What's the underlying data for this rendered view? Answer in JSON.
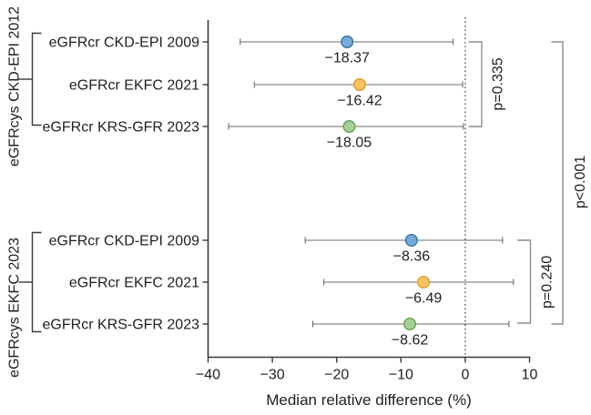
{
  "figure": {
    "xlabel": "Median relative difference (%)"
  },
  "chart_data": {
    "type": "scatter",
    "subtype": "horizontal-forest-plot-with-error-bars",
    "title": "",
    "xlabel": "Median relative difference (%)",
    "ylabel": "",
    "xlim": [
      -40,
      10
    ],
    "xticks": [
      -40,
      -30,
      -20,
      -10,
      0,
      10
    ],
    "xtick_labels": [
      "−40",
      "−30",
      "−20",
      "−10",
      "0",
      "10"
    ],
    "grid": false,
    "reference_line_x": 0,
    "colors": {
      "blue": {
        "fill": "#74aad8",
        "stroke": "#39729f"
      },
      "orange": {
        "fill": "#fcc25f",
        "stroke": "#dd9b35"
      },
      "green": {
        "fill": "#a7d097",
        "stroke": "#649e54"
      }
    },
    "groups": [
      {
        "label": "eGFRcys CKD-EPI 2012",
        "p_label": "p=0.335",
        "rows": [
          {
            "label": "eGFRcr CKD-EPI 2009",
            "median": -18.37,
            "median_label": "−18.37",
            "ci": [
              -35.0,
              -1.9
            ],
            "color": "blue"
          },
          {
            "label": "eGFRcr EKFC 2021",
            "median": -16.42,
            "median_label": "−16.42",
            "ci": [
              -32.8,
              -0.4
            ],
            "color": "orange"
          },
          {
            "label": "eGFRcr KRS-GFR 2023",
            "median": -18.05,
            "median_label": "−18.05",
            "ci": [
              -36.8,
              -0.3
            ],
            "color": "green"
          }
        ]
      },
      {
        "label": "eGFRcys EKFC 2023",
        "p_label": "p=0.240",
        "rows": [
          {
            "label": "eGFRcr CKD-EPI 2009",
            "median": -8.36,
            "median_label": "−8.36",
            "ci": [
              -24.9,
              5.8
            ],
            "color": "blue"
          },
          {
            "label": "eGFRcr EKFC 2021",
            "median": -6.49,
            "median_label": "−6.49",
            "ci": [
              -22.0,
              7.5
            ],
            "color": "orange"
          },
          {
            "label": "eGFRcr KRS-GFR 2023",
            "median": -8.62,
            "median_label": "−8.62",
            "ci": [
              -23.7,
              6.8
            ],
            "color": "green"
          }
        ]
      }
    ],
    "p_overall": "p<0.001",
    "legend": "none"
  }
}
